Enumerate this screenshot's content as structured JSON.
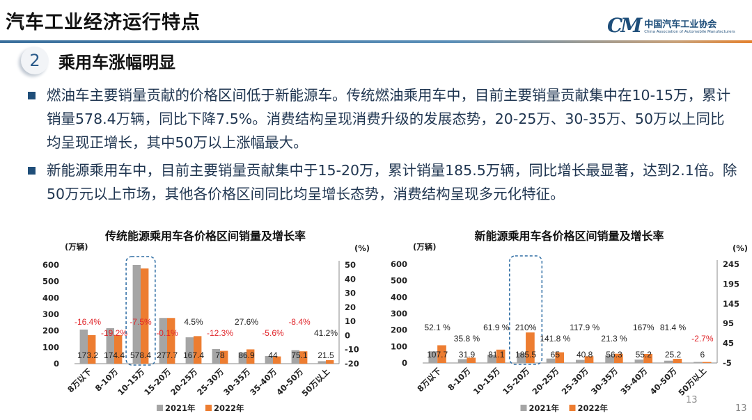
{
  "header": {
    "title": "汽车工业经济运行特点",
    "logo_mark": "CM",
    "logo_cn": "中国汽车工业协会",
    "logo_en": "China Association of Automobile Manufacturers"
  },
  "section": {
    "number": "2",
    "title": "乘用车涨幅明显"
  },
  "bullets": [
    "燃油车主要销量贡献的价格区间低于新能源车。传统燃油乘用车中，目前主要销量贡献集中在10-15万，累计销量578.4万辆，同比下降7.5%。消费结构呈现消费升级的发展态势，20-25万、30-35万、50万以上同比均呈现正增长，其中50万以上涨幅最大。",
    "新能源乘用车中，目前主要销量贡献集中于15-20万，累计销量185.5万辆，同比增长最显著，达到2.1倍。除50万元以上市场，其他各价格区间同比均呈增长态势，消费结构呈现多元化特征。"
  ],
  "page_numbers": [
    "13",
    "13"
  ],
  "colors": {
    "series_2021": "#a5a5a5",
    "series_2022": "#ed7d31",
    "negative_label": "#e0252a",
    "highlight_box": "#2e6da4"
  },
  "chart_data": [
    {
      "type": "bar",
      "title": "传统能源乘用车各价格区间销量及增长率",
      "ylabel": "(万辆)",
      "y2label": "(%)",
      "ylim": [
        0,
        600
      ],
      "yticks": [
        "600",
        "500",
        "400",
        "300",
        "200",
        "100",
        "0"
      ],
      "y2lim": [
        -20,
        50
      ],
      "y2ticks": [
        "50",
        "40",
        "30",
        "20",
        "10",
        "0",
        "-10",
        "-20"
      ],
      "categories": [
        "8万以下",
        "8-10万",
        "10-15万",
        "15-20万",
        "20-25万",
        "25-30万",
        "30-35万",
        "35-40万",
        "40-50万",
        "50万以上"
      ],
      "series": [
        {
          "name": "2021年",
          "values": [
            207.2,
            215.8,
            625.3,
            278.0,
            160.2,
            88.9,
            68.1,
            46.6,
            82.0,
            15.2
          ]
        },
        {
          "name": "2022年",
          "values": [
            173.2,
            174.4,
            578.4,
            277.7,
            167.4,
            78,
            86.9,
            44,
            75.1,
            21.5
          ]
        }
      ],
      "value_labels": [
        "173.2",
        "174.4",
        "578.4",
        "277.7",
        "167.4",
        "78",
        "86.9",
        "44",
        "75.1",
        "21.5"
      ],
      "growth_labels": [
        "-16.4%",
        "-19.2%",
        "-7.5%",
        "-0.1%",
        "4.5%",
        "-12.3%",
        "27.6%",
        "-5.6%",
        "-8.4%",
        "41.2%"
      ],
      "growth": [
        -16.4,
        -19.2,
        -7.5,
        -0.1,
        4.5,
        -12.3,
        27.6,
        -5.6,
        -8.4,
        41.2
      ],
      "highlight": "10-15万",
      "legend": "bottom",
      "grid": false
    },
    {
      "type": "bar",
      "title": "新能源乘用车各价格区间销量及增长率",
      "ylabel": "(万辆)",
      "y2label": "(%)",
      "ylim": [
        0,
        600
      ],
      "yticks": [
        "600",
        "500",
        "400",
        "300",
        "200",
        "100",
        "0"
      ],
      "y2lim": [
        -5,
        245
      ],
      "y2ticks": [
        "245",
        "195",
        "145",
        "95",
        "45",
        "-5"
      ],
      "categories": [
        "8万以下",
        "8-10万",
        "10-15万",
        "15-20万",
        "20-25万",
        "25-30万",
        "30-35万",
        "35-40万",
        "40-50万",
        "50万以上"
      ],
      "series": [
        {
          "name": "2021年",
          "values": [
            70.8,
            23.5,
            50.1,
            59.8,
            26.9,
            18.7,
            46.4,
            20.7,
            13.9,
            6.2
          ]
        },
        {
          "name": "2022年",
          "values": [
            107.7,
            31.9,
            81.1,
            185.5,
            65,
            40.8,
            56.3,
            55.2,
            25.2,
            6
          ]
        }
      ],
      "value_labels": [
        "107.7",
        "31.9",
        "81.1",
        "185.5",
        "65",
        "40.8",
        "56.3",
        "55.2",
        "25.2",
        "6"
      ],
      "growth_labels": [
        "52.1 %",
        "35.8 %",
        "61.9 %",
        "210%",
        "141.8 %",
        "117.9 %",
        "21.3 %",
        "167%",
        "81.4 %",
        "-2.7%"
      ],
      "growth": [
        52.1,
        35.8,
        61.9,
        210,
        141.8,
        117.9,
        21.3,
        167,
        81.4,
        -2.7
      ],
      "highlight": "15-20万",
      "legend": "bottom",
      "grid": false
    }
  ]
}
